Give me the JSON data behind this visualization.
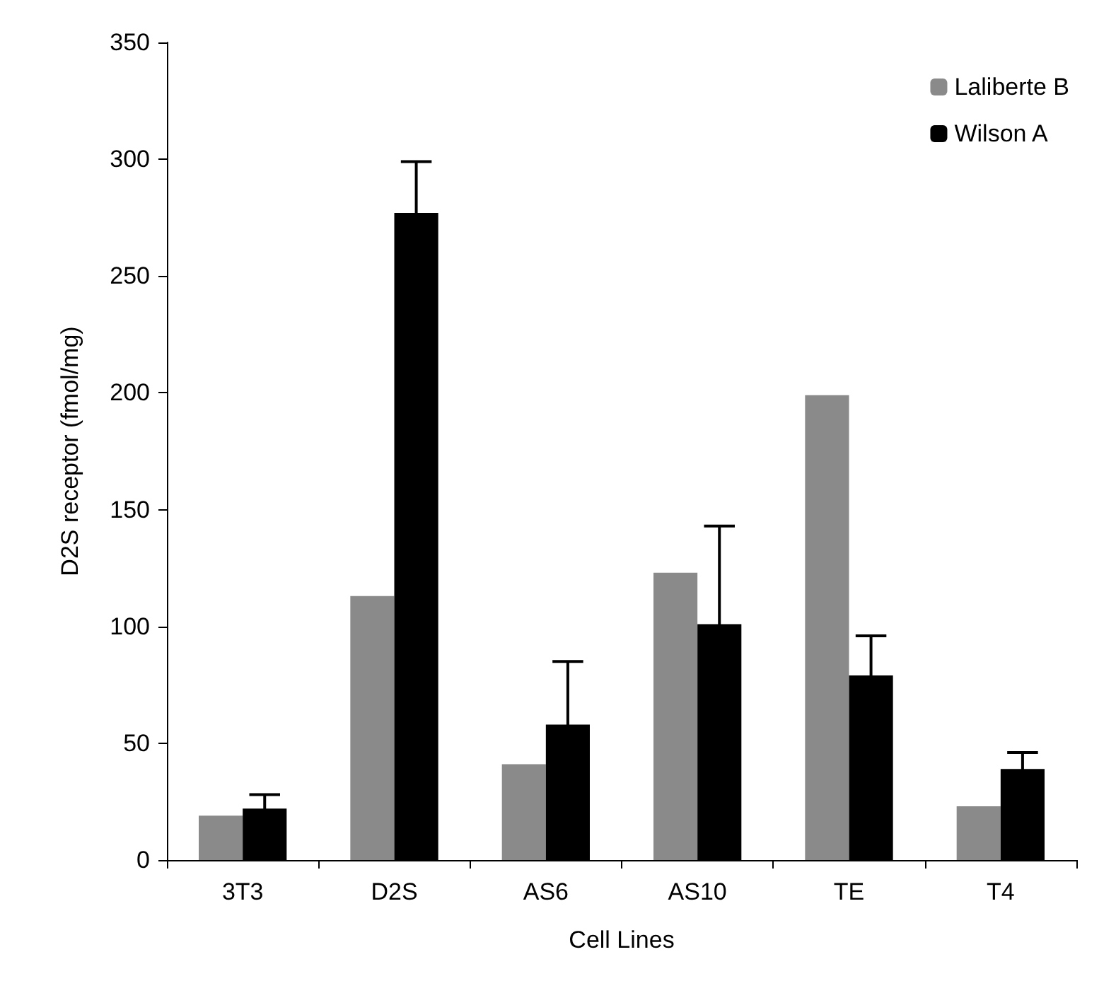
{
  "chart_data": {
    "type": "bar",
    "xlabel": "Cell Lines",
    "ylabel": "D2S receptor (fmol/mg)",
    "categories": [
      "3T3",
      "D2S",
      "AS6",
      "AS10",
      "TE",
      "T4"
    ],
    "series": [
      {
        "name": "Laliberte B",
        "color": "#8a8a8a",
        "values": [
          19,
          113,
          41,
          123,
          199,
          23
        ]
      },
      {
        "name": "Wilson A",
        "color": "#000000",
        "values": [
          22,
          277,
          58,
          101,
          79,
          39
        ],
        "errors": [
          6,
          22,
          27,
          42,
          17,
          7
        ]
      }
    ],
    "ylim": [
      0,
      350
    ],
    "yticks": [
      0,
      50,
      100,
      150,
      200,
      250,
      300,
      350
    ],
    "grid": false,
    "legend": "top right"
  }
}
